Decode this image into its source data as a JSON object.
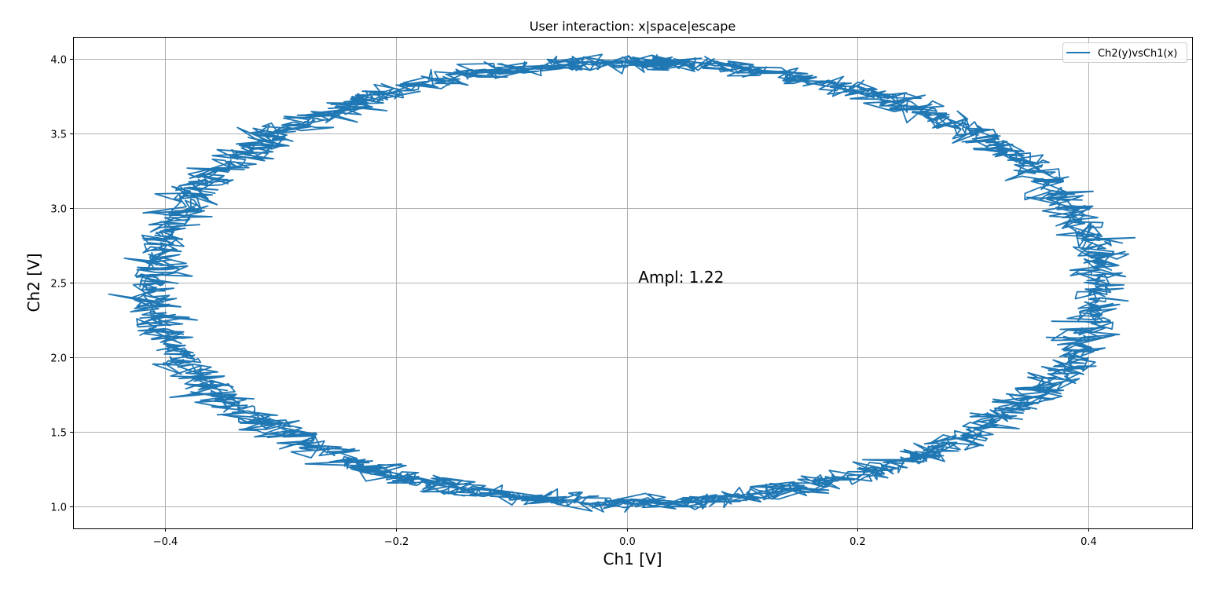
{
  "chart_data": {
    "type": "line",
    "title": "User interaction: x|space|escape",
    "xlabel": "Ch1 [V]",
    "ylabel": "Ch2 [V]",
    "xlim": [
      -0.48,
      0.49
    ],
    "ylim": [
      0.85,
      4.15
    ],
    "x_ticks": [
      -0.4,
      -0.2,
      0.0,
      0.2,
      0.4
    ],
    "x_tick_labels": [
      "−0.4",
      "−0.2",
      "0.0",
      "0.2",
      "0.4"
    ],
    "y_ticks": [
      1.0,
      1.5,
      2.0,
      2.5,
      3.0,
      3.5,
      4.0
    ],
    "y_tick_labels": [
      "1.0",
      "1.5",
      "2.0",
      "2.5",
      "3.0",
      "3.5",
      "4.0"
    ],
    "grid": true,
    "legend": {
      "position": "top-right",
      "entries": [
        "Ch2(y)vsCh1(x)"
      ]
    },
    "annotation": {
      "text": "Ampl: 1.22",
      "x": 0.01,
      "y": 2.5
    },
    "series": [
      {
        "name": "Ch2(y)vsCh1(x)",
        "color": "#1f77b4",
        "shape": "noisy-ellipse",
        "center": [
          0.0,
          2.5
        ],
        "x_amplitude": 0.41,
        "y_amplitude": 1.48,
        "points": 2500,
        "x_noise": 0.012,
        "y_noise": 0.025
      }
    ]
  }
}
